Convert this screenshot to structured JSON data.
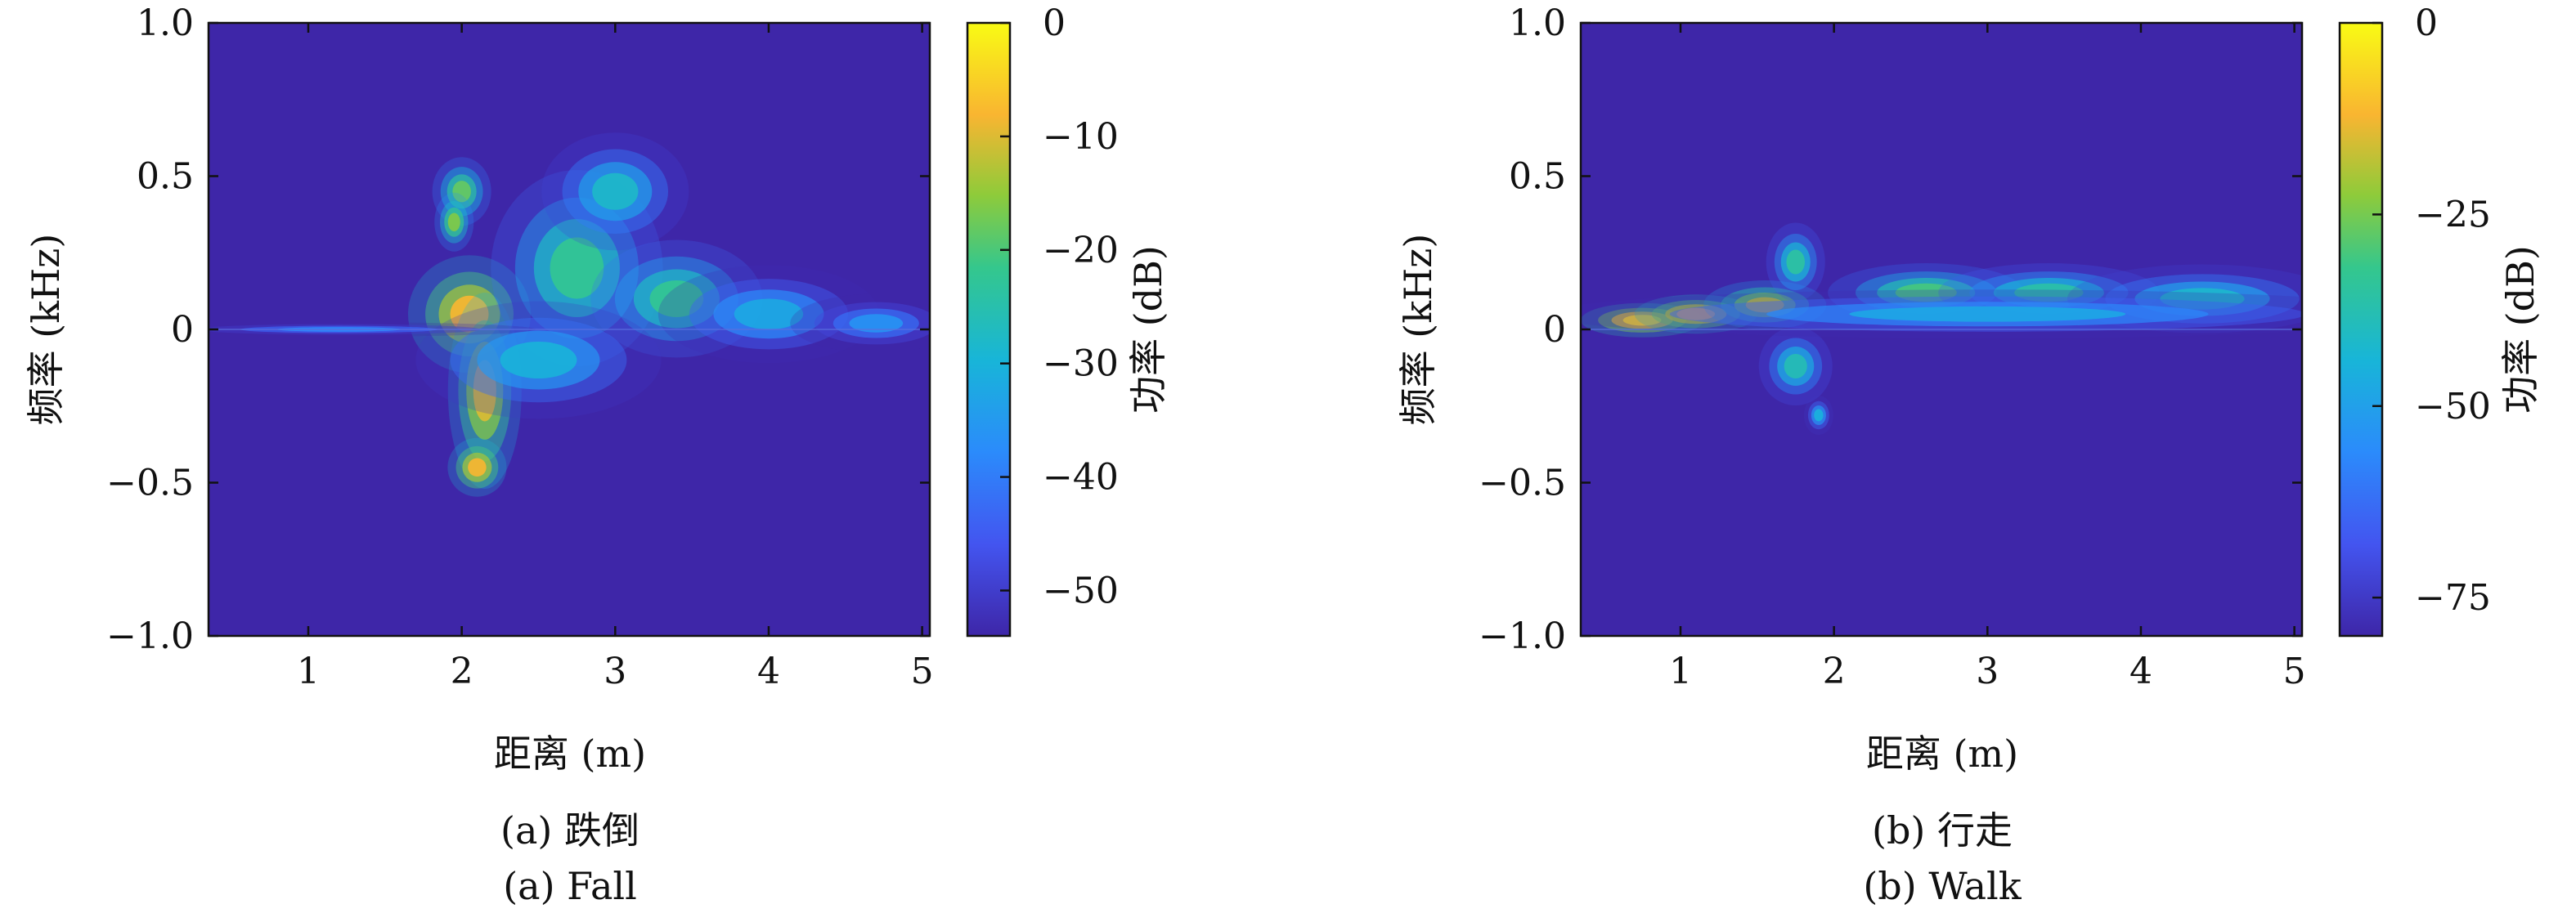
{
  "chart_data": [
    {
      "type": "heatmap",
      "panel_label": "(a) 跌倒",
      "panel_label_en": "(a) Fall",
      "xlabel": "距离 (m)",
      "ylabel": "频率 (kHz)",
      "colorbar_label": "功率 (dB)",
      "x_ticks": [
        "1",
        "2",
        "3",
        "4",
        "5"
      ],
      "y_ticks": [
        "−1.0",
        "−0.5",
        "0",
        "0.5",
        "1.0"
      ],
      "colorbar_ticks": [
        "0",
        "−10",
        "−20",
        "−30",
        "−40",
        "−50"
      ],
      "xlim": [
        0.35,
        5.05
      ],
      "ylim": [
        -1.0,
        1.0
      ],
      "clim": [
        -54,
        0
      ],
      "colormap": "parula",
      "blobs": [
        {
          "x": 2.05,
          "y": 0.05,
          "sx": 0.25,
          "sy": 0.12,
          "v": -8
        },
        {
          "x": 2.15,
          "y": -0.2,
          "sx": 0.15,
          "sy": 0.2,
          "v": -10
        },
        {
          "x": 2.1,
          "y": -0.45,
          "sx": 0.12,
          "sy": 0.06,
          "v": -8
        },
        {
          "x": 2.0,
          "y": 0.45,
          "sx": 0.12,
          "sy": 0.07,
          "v": -18
        },
        {
          "x": 1.95,
          "y": 0.35,
          "sx": 0.08,
          "sy": 0.06,
          "v": -16
        },
        {
          "x": 2.75,
          "y": 0.2,
          "sx": 0.35,
          "sy": 0.2,
          "v": -22
        },
        {
          "x": 3.0,
          "y": 0.45,
          "sx": 0.3,
          "sy": 0.12,
          "v": -28
        },
        {
          "x": 3.4,
          "y": 0.1,
          "sx": 0.35,
          "sy": 0.12,
          "v": -22
        },
        {
          "x": 4.0,
          "y": 0.05,
          "sx": 0.45,
          "sy": 0.1,
          "v": -32
        },
        {
          "x": 2.5,
          "y": -0.1,
          "sx": 0.5,
          "sy": 0.12,
          "v": -30
        },
        {
          "x": 4.7,
          "y": 0.02,
          "sx": 0.35,
          "sy": 0.06,
          "v": -36
        },
        {
          "x": 1.2,
          "y": 0.0,
          "sx": 0.8,
          "sy": 0.015,
          "v": -38
        }
      ]
    },
    {
      "type": "heatmap",
      "panel_label": "(b) 行走",
      "panel_label_en": "(b) Walk",
      "xlabel": "距离 (m)",
      "ylabel": "频率 (kHz)",
      "colorbar_label": "功率 (dB)",
      "x_ticks": [
        "1",
        "2",
        "3",
        "4",
        "5"
      ],
      "y_ticks": [
        "−1.0",
        "−0.5",
        "0",
        "0.5",
        "1.0"
      ],
      "colorbar_ticks": [
        "0",
        "−25",
        "−50",
        "−75"
      ],
      "xlim": [
        0.35,
        5.05
      ],
      "ylim": [
        -1.0,
        1.0
      ],
      "clim": [
        -80,
        0
      ],
      "colormap": "parula",
      "blobs": [
        {
          "x": 0.75,
          "y": 0.03,
          "sx": 0.25,
          "sy": 0.035,
          "v": -6
        },
        {
          "x": 1.1,
          "y": 0.05,
          "sx": 0.25,
          "sy": 0.04,
          "v": -10
        },
        {
          "x": 1.55,
          "y": 0.08,
          "sx": 0.25,
          "sy": 0.05,
          "v": -18
        },
        {
          "x": 1.75,
          "y": 0.22,
          "sx": 0.12,
          "sy": 0.08,
          "v": -35
        },
        {
          "x": 1.75,
          "y": -0.12,
          "sx": 0.15,
          "sy": 0.08,
          "v": -38
        },
        {
          "x": 1.9,
          "y": -0.28,
          "sx": 0.06,
          "sy": 0.04,
          "v": -45
        },
        {
          "x": 2.6,
          "y": 0.12,
          "sx": 0.4,
          "sy": 0.06,
          "v": -30
        },
        {
          "x": 3.4,
          "y": 0.12,
          "sx": 0.45,
          "sy": 0.06,
          "v": -36
        },
        {
          "x": 4.4,
          "y": 0.1,
          "sx": 0.55,
          "sy": 0.07,
          "v": -42
        },
        {
          "x": 3.0,
          "y": 0.05,
          "sx": 1.8,
          "sy": 0.05,
          "v": -48
        }
      ]
    }
  ]
}
